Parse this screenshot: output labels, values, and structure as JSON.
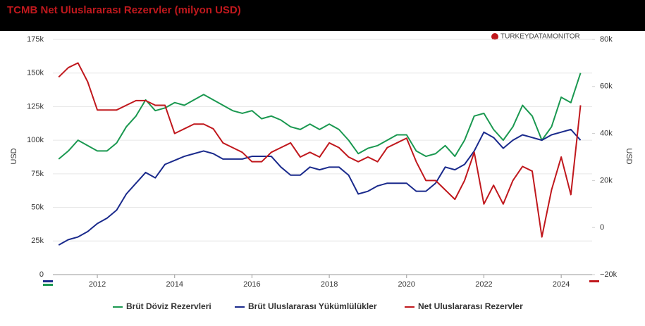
{
  "chart_data": {
    "type": "line",
    "title": "TCMB Net Uluslararası Rezervler (milyon USD)",
    "source": "TURKEYDATAMONITOR",
    "ylabel": "USD",
    "y2label": "USD",
    "x": [
      2011,
      2011.25,
      2011.5,
      2011.75,
      2012,
      2012.25,
      2012.5,
      2012.75,
      2013,
      2013.25,
      2013.5,
      2013.75,
      2014,
      2014.25,
      2014.5,
      2014.75,
      2015,
      2015.25,
      2015.5,
      2015.75,
      2016,
      2016.25,
      2016.5,
      2016.75,
      2017,
      2017.25,
      2017.5,
      2017.75,
      2018,
      2018.25,
      2018.5,
      2018.75,
      2019,
      2019.25,
      2019.5,
      2019.75,
      2020,
      2020.25,
      2020.5,
      2020.75,
      2021,
      2021.25,
      2021.5,
      2021.75,
      2022,
      2022.25,
      2022.5,
      2022.75,
      2023,
      2023.25,
      2023.5,
      2023.75,
      2024,
      2024.25,
      2024.5
    ],
    "xlim": [
      2010.85,
      2024.8
    ],
    "xticks": [
      2012,
      2014,
      2016,
      2018,
      2020,
      2022,
      2024
    ],
    "ylim": [
      0,
      175000
    ],
    "yticks": [
      0,
      {
        "value": 25000,
        "label": "25k"
      },
      {
        "value": 50000,
        "label": "50k"
      },
      {
        "value": 75000,
        "label": "75k"
      },
      {
        "value": 100000,
        "label": "100k"
      },
      {
        "value": 125000,
        "label": "125k"
      },
      {
        "value": 150000,
        "label": "150k"
      },
      {
        "value": 175000,
        "label": "175k"
      }
    ],
    "y2lim": [
      -20000,
      80000
    ],
    "y2ticks": [
      {
        "value": -20000,
        "label": "−20k"
      },
      0,
      {
        "value": 20000,
        "label": "20k"
      },
      {
        "value": 40000,
        "label": "40k"
      },
      {
        "value": 60000,
        "label": "60k"
      },
      {
        "value": 80000,
        "label": "80k"
      }
    ],
    "grid": true,
    "legend": "bottom",
    "series": [
      {
        "name": "Brüt Döviz Rezervleri",
        "color": "#1a9850",
        "values": [
          86000,
          92000,
          100000,
          96000,
          92000,
          92000,
          98000,
          110000,
          118000,
          130000,
          122000,
          124000,
          128000,
          126000,
          130000,
          134000,
          130000,
          126000,
          122000,
          120000,
          122000,
          116000,
          118000,
          115000,
          110000,
          108000,
          112000,
          108000,
          112000,
          108000,
          100000,
          90000,
          94000,
          96000,
          100000,
          104000,
          104000,
          92000,
          88000,
          90000,
          96000,
          88000,
          100000,
          118000,
          120000,
          108000,
          100000,
          110000,
          126000,
          118000,
          100000,
          110000,
          132000,
          128000,
          150000
        ]
      },
      {
        "name": "Brüt Uluslararası Yükümlülükler",
        "color": "#1a2a8c",
        "values": [
          22000,
          26000,
          28000,
          32000,
          38000,
          42000,
          48000,
          60000,
          68000,
          76000,
          72000,
          82000,
          85000,
          88000,
          90000,
          92000,
          90000,
          86000,
          86000,
          86000,
          88000,
          88000,
          88000,
          80000,
          74000,
          74000,
          80000,
          78000,
          80000,
          80000,
          74000,
          60000,
          62000,
          66000,
          68000,
          68000,
          68000,
          62000,
          62000,
          68000,
          80000,
          78000,
          82000,
          92000,
          106000,
          102000,
          94000,
          100000,
          104000,
          102000,
          100000,
          104000,
          106000,
          108000,
          100000
        ]
      },
      {
        "name": "Net Uluslararası Rezervler",
        "color": "#c0181d",
        "axis": "y2",
        "values": [
          64000,
          68000,
          70000,
          62000,
          50000,
          50000,
          50000,
          52000,
          54000,
          54000,
          52000,
          52000,
          40000,
          42000,
          44000,
          44000,
          42000,
          36000,
          34000,
          32000,
          28000,
          28000,
          32000,
          34000,
          36000,
          30000,
          32000,
          30000,
          36000,
          34000,
          30000,
          28000,
          30000,
          28000,
          34000,
          36000,
          38000,
          28000,
          20000,
          20000,
          16000,
          12000,
          20000,
          32000,
          10000,
          18000,
          10000,
          20000,
          26000,
          24000,
          -4000,
          16000,
          30000,
          14000,
          52000
        ]
      }
    ]
  }
}
